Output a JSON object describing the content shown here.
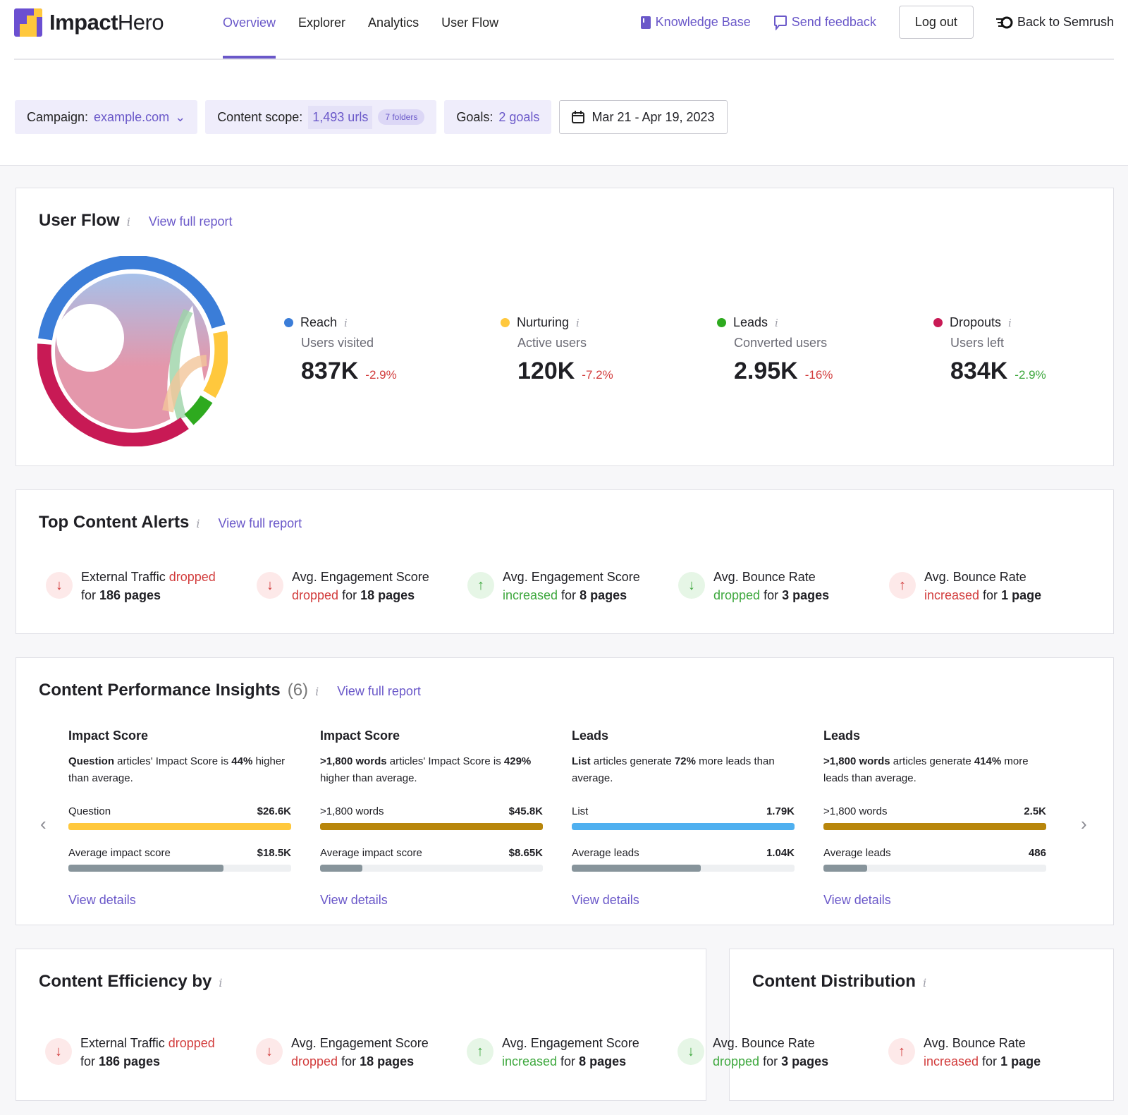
{
  "brand": {
    "bold": "Impact",
    "light": "Hero"
  },
  "nav": {
    "tabs": [
      "Overview",
      "Explorer",
      "Analytics",
      "User Flow"
    ],
    "active": "Overview",
    "knowledge_base": "Knowledge Base",
    "feedback": "Send feedback",
    "logout": "Log out",
    "back": "Back to Semrush"
  },
  "filters": {
    "campaign_label": "Campaign:",
    "campaign_value": "example.com",
    "scope_label": "Content scope:",
    "scope_value": "1,493 urls",
    "scope_pill": "7 folders",
    "goals_label": "Goals:",
    "goals_value": "2 goals",
    "date": "Mar 21 - Apr 19, 2023"
  },
  "colors": {
    "accent": "#6a58c9",
    "reach": "#3b7dd8",
    "nurturing": "#ffc83d",
    "leads": "#2eaa1f",
    "dropouts": "#c81a55"
  },
  "user_flow": {
    "title": "User Flow",
    "link": "View full report",
    "metrics": [
      {
        "name": "Reach",
        "sub": "Users visited",
        "value": "837K",
        "change": "-2.9%",
        "trend": "neg",
        "color": "#3b7dd8"
      },
      {
        "name": "Nurturing",
        "sub": "Active users",
        "value": "120K",
        "change": "-7.2%",
        "trend": "neg",
        "color": "#ffc83d"
      },
      {
        "name": "Leads",
        "sub": "Converted users",
        "value": "2.95K",
        "change": "-16%",
        "trend": "neg",
        "color": "#2eaa1f"
      },
      {
        "name": "Dropouts",
        "sub": "Users left",
        "value": "834K",
        "change": "-2.9%",
        "trend": "pos",
        "color": "#c81a55"
      }
    ]
  },
  "alerts": {
    "title": "Top Content Alerts",
    "link": "View full report",
    "items": [
      {
        "dir": "down",
        "tone": "r",
        "a": "External Traffic ",
        "b": "dropped",
        "c": "",
        "d": "for ",
        "e": "186 pages",
        "lead_first": true
      },
      {
        "dir": "down",
        "tone": "r",
        "a": "Avg. Engagement Score",
        "b": "dropped",
        "d": " for ",
        "e": "18 pages"
      },
      {
        "dir": "up",
        "tone": "g",
        "a": "Avg. Engagement Score",
        "b": "increased",
        "d": " for ",
        "e": "8 pages"
      },
      {
        "dir": "down",
        "tone": "g",
        "a": "Avg. Bounce Rate",
        "b": "dropped",
        "d": " for ",
        "e": "3 pages"
      },
      {
        "dir": "up",
        "tone": "r",
        "a": "Avg. Bounce Rate",
        "b": "increased",
        "d": " for ",
        "e": "1 page"
      }
    ]
  },
  "insights": {
    "title": "Content Performance Insights",
    "count": "(6)",
    "link": "View full report",
    "cards": [
      {
        "title": "Impact Score",
        "b1": "Question",
        "t1": " articles' Impact Score is ",
        "b2": "44%",
        "t2": " higher than average.",
        "label": "Question",
        "value": "$26.6K",
        "fill": 1.0,
        "color": "#ffc83d",
        "avg_label": "Average impact score",
        "avg_value": "$18.5K",
        "avg_fill": 0.695,
        "details": "View details"
      },
      {
        "title": "Impact Score",
        "b1": ">1,800 words",
        "t1": " articles' Impact Score is ",
        "b2": "429%",
        "t2": " higher than average.",
        "label": ">1,800 words",
        "value": "$45.8K",
        "fill": 1.0,
        "color": "#b8860b",
        "avg_label": "Average impact score",
        "avg_value": "$8.65K",
        "avg_fill": 0.19,
        "details": "View details"
      },
      {
        "title": "Leads",
        "b1": "List",
        "t1": " articles generate ",
        "b2": "72%",
        "t2": " more leads than average.",
        "label": "List",
        "value": "1.79K",
        "fill": 1.0,
        "color": "#4fb0f0",
        "avg_label": "Average leads",
        "avg_value": "1.04K",
        "avg_fill": 0.58,
        "details": "View details"
      },
      {
        "title": "Leads",
        "b1": ">1,800 words",
        "t1": " articles generate ",
        "b2": "414%",
        "t2": " more leads than average.",
        "label": ">1,800 words",
        "value": "2.5K",
        "fill": 1.0,
        "color": "#b8860b",
        "avg_label": "Average leads",
        "avg_value": "486",
        "avg_fill": 0.195,
        "details": "View details"
      }
    ]
  },
  "efficiency": {
    "title": "Content Efficiency by"
  },
  "distribution": {
    "title": "Content Distribution"
  }
}
